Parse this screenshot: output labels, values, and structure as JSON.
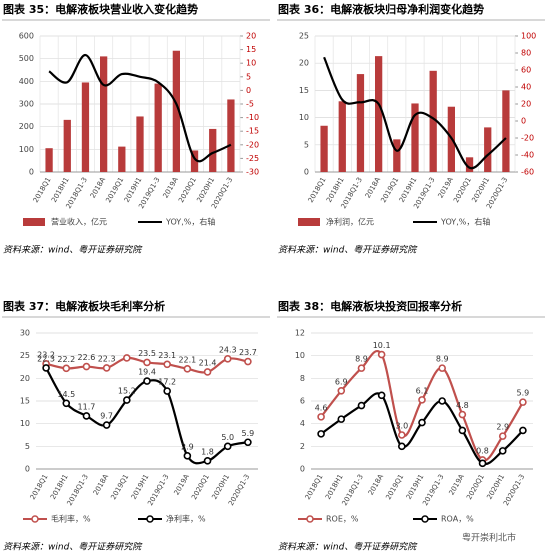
{
  "chart_data": [
    {
      "type": "combo",
      "title": "图表 35：电解液板块营业收入变化趋势",
      "categories": [
        "2018Q1",
        "2018H1",
        "2018Q1-3",
        "2018A",
        "2019Q1",
        "2019H1",
        "2019Q1-3",
        "2019A",
        "2020Q1",
        "2020H1",
        "2020Q1-3"
      ],
      "series": [
        {
          "name": "营业收入，亿元",
          "type": "bar",
          "color": "#b83b3b",
          "values": [
            105,
            230,
            395,
            510,
            112,
            245,
            390,
            535,
            95,
            190,
            320
          ]
        },
        {
          "name": "YOY,%，右轴",
          "type": "line",
          "axis": "y2",
          "color": "#000000",
          "values": [
            7,
            3,
            13,
            2,
            6,
            5,
            3,
            -5,
            -25,
            -23,
            -20
          ]
        }
      ],
      "ylim": [
        0,
        600
      ],
      "yticks": [
        0,
        100,
        200,
        300,
        400,
        500,
        600
      ],
      "y2lim": [
        -30,
        20
      ],
      "y2ticks": [
        -30,
        -25,
        -20,
        -15,
        -10,
        -5,
        0,
        5,
        10,
        15,
        20
      ],
      "y2_color": "#c00000",
      "grid": true,
      "source": "资料来源：wind、粤开证券研究院"
    },
    {
      "type": "combo",
      "title": "图表 36：电解液板块归母净利润变化趋势",
      "categories": [
        "2018Q1",
        "2018H1",
        "2018Q1-3",
        "2018A",
        "2019Q1",
        "2019H1",
        "2019Q1-3",
        "2019A",
        "2020Q1",
        "2020H1",
        "2020Q1-3"
      ],
      "series": [
        {
          "name": "净利润，亿元",
          "type": "bar",
          "color": "#b83b3b",
          "values": [
            8.5,
            13,
            18,
            21.3,
            6,
            12.6,
            18.6,
            12,
            2.7,
            8.2,
            15
          ]
        },
        {
          "name": "YOY,%，右轴",
          "type": "line",
          "axis": "y2",
          "color": "#000000",
          "values": [
            75,
            25,
            22,
            20,
            -35,
            7,
            3,
            -20,
            -55,
            -40,
            -20
          ]
        }
      ],
      "ylim": [
        0,
        25
      ],
      "yticks": [
        0,
        5,
        10,
        15,
        20,
        25
      ],
      "y2lim": [
        -60,
        100
      ],
      "y2ticks": [
        -60,
        -40,
        -20,
        0,
        20,
        40,
        60,
        80,
        100
      ],
      "y2_color": "#c00000",
      "grid": true,
      "source": "资料来源：wind、粤开证券研究院"
    },
    {
      "type": "line",
      "title": "图表 37：电解液板块毛利率分析",
      "categories": [
        "2018Q1",
        "2018H1",
        "2018Q1-3",
        "2018A",
        "2019Q1",
        "2019H1",
        "2019Q1-3",
        "2019A",
        "2020Q1",
        "2020H1",
        "2020Q1-3"
      ],
      "series": [
        {
          "name": "毛利率，%",
          "color": "#c0504d",
          "values": [
            23.2,
            22.2,
            22.6,
            22.3,
            24.5,
            23.5,
            23.1,
            22.1,
            21.4,
            24.3,
            23.7
          ],
          "value_labels": [
            "23.2",
            "22.2",
            "22.6",
            "22.3",
            null,
            "23.5",
            "23.1",
            "22.1",
            "21.4",
            "24.3",
            "23.7"
          ]
        },
        {
          "name": "净利率，%",
          "color": "#000000",
          "values": [
            22.3,
            14.5,
            11.7,
            9.7,
            15.2,
            19.4,
            17.2,
            2.9,
            1.8,
            5.0,
            5.9
          ],
          "value_labels": [
            "22.3",
            "14.5",
            "11.7",
            "9.7",
            "15.2",
            "19.4",
            "17.2",
            "2.9",
            "1.8",
            "5.0",
            "5.9"
          ]
        }
      ],
      "ylim": [
        0,
        30
      ],
      "yticks": [
        0,
        5,
        10,
        15,
        20,
        25,
        30
      ],
      "grid": true,
      "source": "资料来源：wind、粤开证券研究院"
    },
    {
      "type": "line",
      "title": "图表 38：电解液板块投资回报率分析",
      "categories": [
        "2018Q1",
        "2018H1",
        "2018Q1-3",
        "2018A",
        "2019Q1",
        "2019H1",
        "2019Q1-3",
        "2019A",
        "2020Q1",
        "2020H1",
        "2020Q1-3"
      ],
      "series": [
        {
          "name": "ROE，%",
          "color": "#c0504d",
          "values": [
            4.6,
            6.9,
            8.9,
            10.1,
            3.0,
            6.1,
            8.9,
            4.8,
            0.8,
            2.9,
            5.9
          ],
          "value_labels": [
            "4.6",
            "6.9",
            "8.9",
            "10.1",
            "3.0",
            "6.1",
            "8.9",
            "4.8",
            "0.8",
            "2.9",
            "5.9"
          ]
        },
        {
          "name": "ROA，%",
          "color": "#000000",
          "values": [
            3.1,
            4.4,
            5.6,
            6.5,
            2.0,
            4.1,
            6.0,
            3.4,
            0.5,
            1.6,
            3.4
          ]
        }
      ],
      "ylim": [
        0,
        12
      ],
      "yticks": [
        0,
        2,
        4,
        6,
        8,
        10,
        12
      ],
      "grid": true,
      "source": "资料来源：wind、粤开证券研究院"
    }
  ],
  "watermark": "粤开崇利北市"
}
